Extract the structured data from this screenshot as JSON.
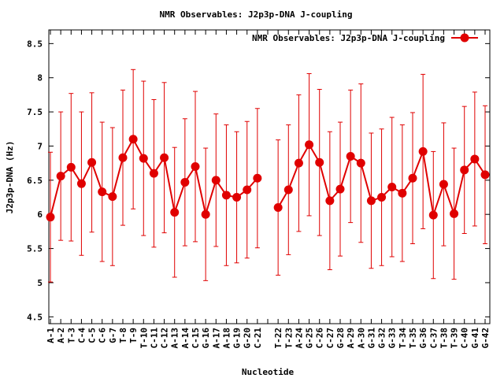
{
  "chart_data": {
    "type": "line",
    "title": "NMR Observables: J2p3p-DNA J-coupling",
    "xlabel": "Nucleotide",
    "ylabel": "J2p3p-DNA (Hz)",
    "ylim": [
      4.4,
      8.7
    ],
    "yticks": [
      "4.5",
      "5",
      "5.5",
      "6",
      "6.5",
      "7",
      "7.5",
      "8",
      "8.5"
    ],
    "grid": false,
    "legend_position": "top-right",
    "series_color": "#e00000",
    "categories": [
      "A-1",
      "A-2",
      "T-3",
      "C-4",
      "C-5",
      "C-6",
      "G-7",
      "T-8",
      "T-9",
      "T-10",
      "C-11",
      "C-12",
      "A-13",
      "A-14",
      "C-15",
      "G-16",
      "A-17",
      "A-18",
      "G-19",
      "G-20",
      "C-21",
      "",
      "T-22",
      "T-23",
      "A-24",
      "G-25",
      "C-26",
      "C-27",
      "G-28",
      "A-29",
      "A-30",
      "G-31",
      "G-32",
      "G-33",
      "T-34",
      "T-35",
      "G-36",
      "C-37",
      "T-38",
      "T-39",
      "C-40",
      "G-41",
      "G-42"
    ],
    "series": [
      {
        "name": "NMR Observables: J2p3p-DNA J-coupling",
        "values": [
          5.96,
          6.56,
          6.69,
          6.45,
          6.76,
          6.33,
          6.26,
          6.83,
          7.1,
          6.82,
          6.6,
          6.83,
          6.03,
          6.47,
          6.7,
          6.0,
          6.5,
          6.28,
          6.25,
          6.36,
          6.53,
          null,
          6.1,
          6.36,
          6.75,
          7.02,
          6.76,
          6.2,
          6.37,
          6.85,
          6.75,
          6.2,
          6.25,
          6.4,
          6.31,
          6.53,
          6.92,
          5.99,
          6.44,
          6.01,
          6.65,
          6.81,
          6.58
        ],
        "errors": [
          0.95,
          0.94,
          1.08,
          1.05,
          1.02,
          1.02,
          1.01,
          0.99,
          1.02,
          1.13,
          1.08,
          1.1,
          0.95,
          0.93,
          1.1,
          0.97,
          0.97,
          1.03,
          0.96,
          1.0,
          1.02,
          null,
          0.99,
          0.95,
          1.0,
          1.04,
          1.07,
          1.01,
          0.98,
          0.97,
          1.16,
          0.99,
          1.0,
          1.02,
          1.0,
          0.96,
          1.13,
          0.93,
          0.9,
          0.96,
          0.93,
          0.98,
          1.01
        ]
      }
    ]
  }
}
